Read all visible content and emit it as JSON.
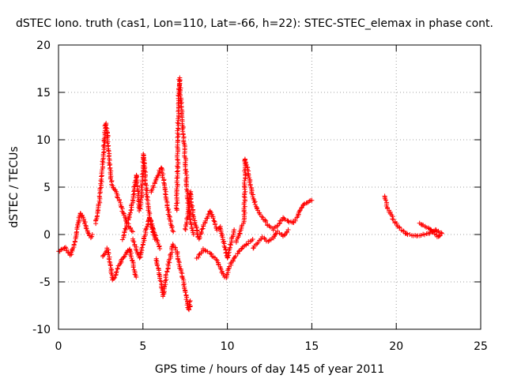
{
  "chart_data": {
    "type": "scatter",
    "title": "dSTEC Iono. truth (cas1, Lon=110, Lat=-66, h=22): STEC-STEC_elemax in phase cont.",
    "xlabel": "GPS time / hours of day 145 of year 2011",
    "ylabel": "dSTEC  / TECUs",
    "xlim": [
      0,
      25
    ],
    "ylim": [
      -10,
      20
    ],
    "xticks": [
      0,
      5,
      10,
      15,
      20,
      25
    ],
    "yticks": [
      -10,
      -5,
      0,
      5,
      10,
      15,
      20
    ],
    "xtick_labels": [
      "0",
      "5",
      "10",
      "15",
      "20",
      "25"
    ],
    "ytick_labels": [
      "-10",
      "-5",
      "0",
      "5",
      "10",
      "15",
      "20"
    ],
    "grid": true,
    "marker": "plus",
    "color": "#ff0000",
    "series": [
      {
        "segments": [
          [
            [
              0.0,
              -1.8
            ],
            [
              0.2,
              -1.5
            ],
            [
              0.4,
              -1.4
            ],
            [
              0.55,
              -1.8
            ],
            [
              0.7,
              -2.2
            ],
            [
              0.85,
              -1.5
            ],
            [
              1.0,
              -0.5
            ],
            [
              1.1,
              0.5
            ],
            [
              1.2,
              1.5
            ],
            [
              1.3,
              2.3
            ],
            [
              1.45,
              1.8
            ],
            [
              1.6,
              1.0
            ],
            [
              1.75,
              0.3
            ],
            [
              1.9,
              -0.3
            ],
            [
              2.0,
              0.0
            ]
          ],
          [
            [
              2.2,
              1.2
            ],
            [
              2.3,
              2.2
            ],
            [
              2.4,
              3.2
            ],
            [
              2.5,
              5.0
            ],
            [
              2.6,
              7.0
            ],
            [
              2.7,
              9.5
            ],
            [
              2.75,
              11.0
            ],
            [
              2.8,
              11.8
            ],
            [
              2.9,
              10.5
            ],
            [
              3.0,
              8.0
            ],
            [
              3.1,
              6.0
            ],
            [
              3.2,
              5.0
            ],
            [
              3.4,
              4.5
            ],
            [
              3.6,
              3.5
            ],
            [
              3.8,
              2.5
            ],
            [
              4.0,
              1.5
            ],
            [
              4.2,
              0.8
            ],
            [
              4.4,
              0.3
            ]
          ],
          [
            [
              2.6,
              -2.3
            ],
            [
              2.8,
              -2.0
            ],
            [
              2.9,
              -1.5
            ],
            [
              3.1,
              -3.5
            ],
            [
              3.2,
              -4.8
            ],
            [
              3.4,
              -4.2
            ],
            [
              3.6,
              -3.2
            ],
            [
              3.8,
              -2.5
            ],
            [
              4.0,
              -2.0
            ],
            [
              4.2,
              -1.5
            ],
            [
              4.4,
              -3.0
            ],
            [
              4.6,
              -4.5
            ]
          ],
          [
            [
              3.8,
              -0.5
            ],
            [
              4.0,
              0.8
            ],
            [
              4.2,
              2.0
            ],
            [
              4.4,
              3.5
            ],
            [
              4.5,
              5.0
            ],
            [
              4.6,
              6.3
            ],
            [
              4.7,
              4.5
            ],
            [
              4.8,
              2.5
            ],
            [
              4.9,
              4.0
            ],
            [
              5.0,
              7.0
            ],
            [
              5.05,
              8.5
            ],
            [
              5.15,
              6.0
            ],
            [
              5.3,
              3.0
            ],
            [
              5.5,
              1.0
            ],
            [
              5.7,
              -0.5
            ]
          ],
          [
            [
              4.4,
              -0.5
            ],
            [
              4.6,
              -1.5
            ],
            [
              4.8,
              -2.5
            ],
            [
              5.0,
              -1.0
            ],
            [
              5.2,
              0.5
            ],
            [
              5.4,
              1.8
            ],
            [
              5.6,
              0.5
            ],
            [
              5.8,
              -0.5
            ],
            [
              6.0,
              -1.5
            ]
          ],
          [
            [
              5.5,
              4.5
            ],
            [
              5.7,
              5.5
            ],
            [
              5.9,
              6.2
            ],
            [
              6.0,
              6.8
            ],
            [
              6.1,
              7.1
            ],
            [
              6.25,
              5.5
            ],
            [
              6.4,
              3.5
            ],
            [
              6.6,
              1.5
            ],
            [
              6.8,
              0.3
            ]
          ],
          [
            [
              5.8,
              -2.5
            ],
            [
              6.0,
              -4.5
            ],
            [
              6.1,
              -5.5
            ],
            [
              6.2,
              -6.5
            ],
            [
              6.4,
              -4.0
            ],
            [
              6.6,
              -2.5
            ],
            [
              6.8,
              -1.0
            ],
            [
              7.0,
              -1.8
            ],
            [
              7.2,
              -3.5
            ],
            [
              7.4,
              -5.0
            ],
            [
              7.55,
              -6.5
            ],
            [
              7.65,
              -7.5
            ],
            [
              7.75,
              -8.0
            ],
            [
              7.8,
              -7.0
            ]
          ],
          [
            [
              7.0,
              2.5
            ],
            [
              7.05,
              8.0
            ],
            [
              7.1,
              14.0
            ],
            [
              7.15,
              16.5
            ],
            [
              7.2,
              15.5
            ],
            [
              7.3,
              12.5
            ],
            [
              7.4,
              10.5
            ],
            [
              7.5,
              8.0
            ],
            [
              7.6,
              5.0
            ],
            [
              7.7,
              3.0
            ],
            [
              7.85,
              1.0
            ],
            [
              8.0,
              0.0
            ]
          ],
          [
            [
              7.5,
              0.5
            ],
            [
              7.7,
              2.5
            ],
            [
              7.8,
              4.5
            ],
            [
              7.9,
              3.0
            ],
            [
              8.1,
              1.0
            ],
            [
              8.3,
              -0.5
            ],
            [
              8.5,
              0.5
            ],
            [
              8.8,
              1.8
            ],
            [
              9.0,
              2.5
            ],
            [
              9.2,
              1.5
            ],
            [
              9.4,
              0.5
            ],
            [
              9.6,
              0.8
            ],
            [
              9.8,
              -1.0
            ],
            [
              10.0,
              -2.5
            ],
            [
              10.2,
              -1.0
            ],
            [
              10.4,
              0.5
            ]
          ],
          [
            [
              8.2,
              -2.5
            ],
            [
              8.6,
              -1.5
            ],
            [
              9.0,
              -2.0
            ],
            [
              9.4,
              -2.8
            ],
            [
              9.7,
              -4.0
            ],
            [
              9.9,
              -4.6
            ],
            [
              10.1,
              -3.5
            ],
            [
              10.4,
              -2.5
            ],
            [
              10.7,
              -1.8
            ],
            [
              11.0,
              -1.2
            ],
            [
              11.5,
              -0.5
            ]
          ],
          [
            [
              10.5,
              -0.8
            ],
            [
              10.8,
              0.5
            ],
            [
              11.0,
              1.5
            ],
            [
              11.05,
              8.0
            ],
            [
              11.2,
              7.0
            ],
            [
              11.35,
              5.5
            ],
            [
              11.5,
              4.0
            ],
            [
              11.7,
              3.0
            ],
            [
              11.9,
              2.2
            ],
            [
              12.1,
              1.8
            ],
            [
              12.4,
              1.0
            ],
            [
              12.7,
              0.5
            ],
            [
              13.0,
              1.0
            ],
            [
              13.3,
              1.8
            ],
            [
              13.6,
              1.4
            ],
            [
              13.9,
              1.2
            ],
            [
              14.1,
              1.8
            ],
            [
              14.3,
              2.5
            ],
            [
              14.5,
              3.2
            ],
            [
              14.8,
              3.4
            ],
            [
              15.0,
              3.6
            ]
          ],
          [
            [
              11.5,
              -1.5
            ],
            [
              11.8,
              -0.8
            ],
            [
              12.1,
              -0.3
            ],
            [
              12.4,
              -0.8
            ],
            [
              12.7,
              -0.3
            ],
            [
              13.0,
              0.3
            ],
            [
              13.3,
              -0.2
            ],
            [
              13.6,
              0.5
            ]
          ],
          [
            [
              19.3,
              4.1
            ],
            [
              19.4,
              3.4
            ],
            [
              19.5,
              2.7
            ],
            [
              19.7,
              2.0
            ],
            [
              19.9,
              1.4
            ],
            [
              20.1,
              0.9
            ],
            [
              20.3,
              0.5
            ],
            [
              20.5,
              0.2
            ],
            [
              20.7,
              0.0
            ],
            [
              21.0,
              -0.1
            ],
            [
              21.3,
              -0.1
            ],
            [
              21.6,
              0.0
            ],
            [
              21.9,
              0.1
            ],
            [
              22.1,
              0.3
            ],
            [
              22.3,
              0.5
            ],
            [
              22.5,
              0.3
            ],
            [
              22.7,
              0.1
            ]
          ],
          [
            [
              21.4,
              1.2
            ],
            [
              21.7,
              0.9
            ],
            [
              22.0,
              0.5
            ],
            [
              22.2,
              0.2
            ],
            [
              22.4,
              -0.2
            ],
            [
              22.6,
              -0.1
            ]
          ]
        ]
      }
    ]
  }
}
